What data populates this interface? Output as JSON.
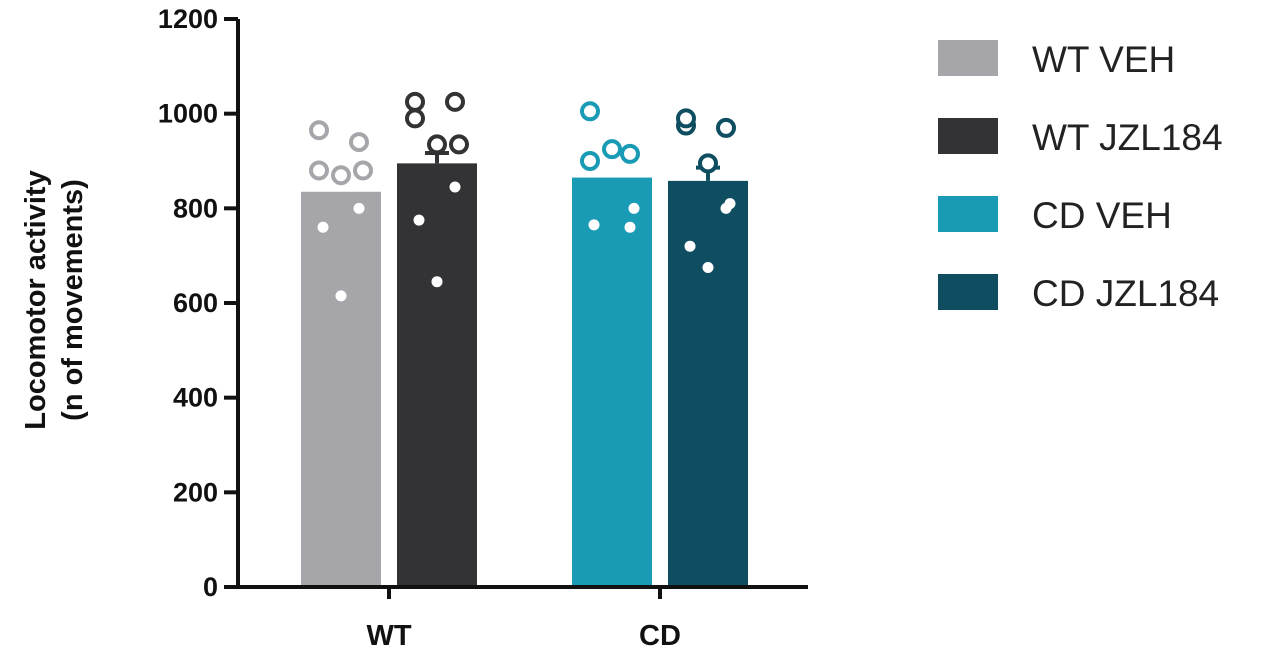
{
  "chart_data": {
    "type": "bar",
    "title": "",
    "xlabel": "",
    "ylabel": [
      "Locomotor activity",
      "(n of movements)"
    ],
    "ylim": [
      0,
      1200
    ],
    "yticks": [
      0,
      200,
      400,
      600,
      800,
      1000,
      1200
    ],
    "ytick_labels": [
      "0",
      "200",
      "400",
      "600",
      "800",
      "1000",
      "1200"
    ],
    "grid": false,
    "legend_position": "right",
    "categories": [
      "WT",
      "CD"
    ],
    "series": [
      {
        "name": "WT VEH",
        "color": "#a6a6aa",
        "group": "WT",
        "mean": 835,
        "sem": 0,
        "points": [
          {
            "value": 965,
            "style": "open"
          },
          {
            "value": 940,
            "style": "open"
          },
          {
            "value": 880,
            "style": "open"
          },
          {
            "value": 870,
            "style": "open"
          },
          {
            "value": 880,
            "style": "open"
          },
          {
            "value": 800,
            "style": "filled"
          },
          {
            "value": 760,
            "style": "filled"
          },
          {
            "value": 615,
            "style": "filled"
          }
        ]
      },
      {
        "name": "WT JZL184",
        "color": "#333335",
        "group": "WT",
        "mean": 895,
        "sem": 22,
        "points": [
          {
            "value": 1025,
            "style": "open"
          },
          {
            "value": 1025,
            "style": "open"
          },
          {
            "value": 990,
            "style": "open"
          },
          {
            "value": 935,
            "style": "open"
          },
          {
            "value": 935,
            "style": "open"
          },
          {
            "value": 845,
            "style": "filled"
          },
          {
            "value": 775,
            "style": "filled"
          },
          {
            "value": 645,
            "style": "filled"
          }
        ]
      },
      {
        "name": "CD VEH",
        "color": "#1a9bb5",
        "group": "CD",
        "mean": 865,
        "sem": 0,
        "points": [
          {
            "value": 1005,
            "style": "open"
          },
          {
            "value": 915,
            "style": "open"
          },
          {
            "value": 900,
            "style": "open"
          },
          {
            "value": 925,
            "style": "open"
          },
          {
            "value": 800,
            "style": "filled"
          },
          {
            "value": 760,
            "style": "filled"
          },
          {
            "value": 765,
            "style": "filled"
          }
        ]
      },
      {
        "name": "CD JZL184",
        "color": "#0f4e61",
        "group": "CD",
        "mean": 858,
        "sem": 28,
        "points": [
          {
            "value": 975,
            "style": "open"
          },
          {
            "value": 970,
            "style": "open"
          },
          {
            "value": 990,
            "style": "open"
          },
          {
            "value": 895,
            "style": "open"
          },
          {
            "value": 810,
            "style": "filled"
          },
          {
            "value": 800,
            "style": "filled"
          },
          {
            "value": 720,
            "style": "filled"
          },
          {
            "value": 675,
            "style": "filled"
          }
        ]
      }
    ]
  }
}
